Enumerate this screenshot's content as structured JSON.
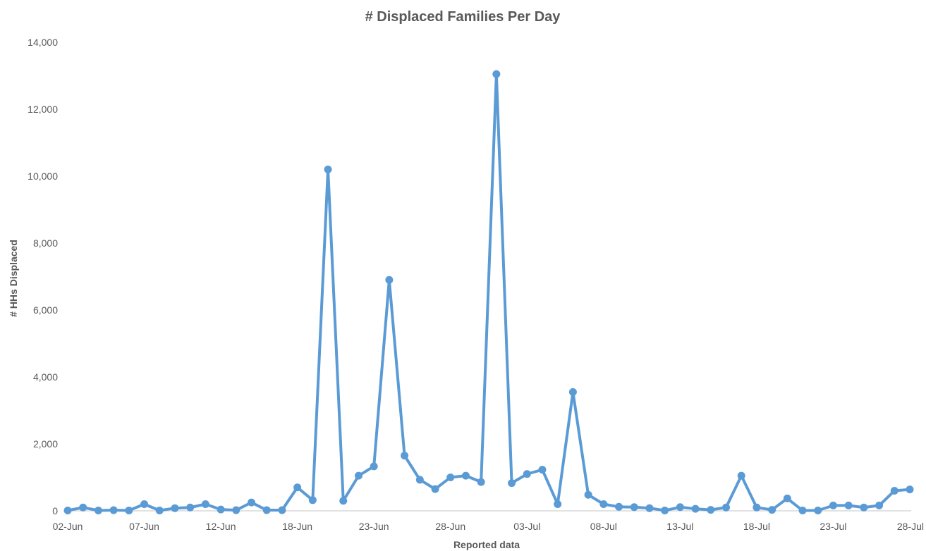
{
  "chart_data": {
    "type": "line",
    "title": "# Displaced Families Per Day",
    "xlabel": "Reported data",
    "ylabel": "# HHs Displaced",
    "ylim": [
      0,
      14000
    ],
    "y_ticks": [
      0,
      2000,
      4000,
      6000,
      8000,
      10000,
      12000,
      14000
    ],
    "y_tick_labels": [
      "0",
      "2,000",
      "4,000",
      "6,000",
      "8,000",
      "10,000",
      "12,000",
      "14,000"
    ],
    "x_tick_labels": [
      "02-Jun",
      "07-Jun",
      "12-Jun",
      "18-Jun",
      "23-Jun",
      "28-Jun",
      "03-Jul",
      "08-Jul",
      "13-Jul",
      "18-Jul",
      "23-Jul",
      "28-Jul"
    ],
    "x_tick_indices": [
      0,
      5,
      10,
      15,
      20,
      25,
      30,
      35,
      40,
      45,
      50,
      55
    ],
    "grid": false,
    "legend": "none",
    "colors": {
      "series": "#5B9BD5",
      "axis": "#D9D9D9",
      "text": "#595959"
    },
    "series": [
      {
        "values": [
          10,
          100,
          10,
          20,
          10,
          200,
          10,
          80,
          100,
          200,
          40,
          20,
          250,
          20,
          20,
          700,
          320,
          10200,
          300,
          1050,
          1330,
          6900,
          1650,
          930,
          650,
          1000,
          1050,
          860,
          13050,
          830,
          1100,
          1230,
          200,
          3550,
          480,
          200,
          120,
          110,
          80,
          10,
          110,
          60,
          30,
          100,
          1050,
          100,
          30,
          370,
          10,
          10,
          160,
          160,
          100,
          160,
          600,
          640
        ]
      }
    ]
  }
}
